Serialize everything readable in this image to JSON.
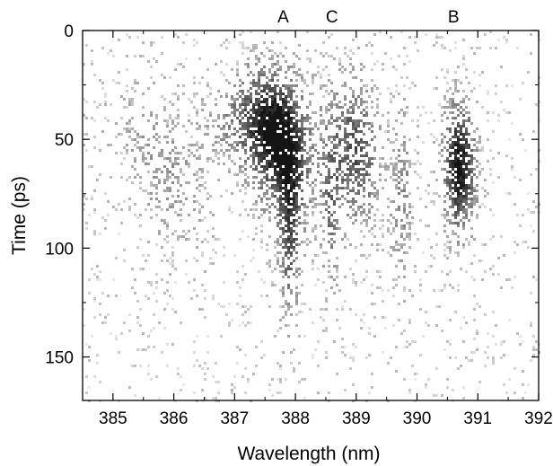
{
  "chart_data": {
    "type": "heatmap",
    "title": "",
    "xlabel": "Wavelength (nm)",
    "ylabel": "Time (ps)",
    "xlim": [
      384.5,
      392
    ],
    "ylim": [
      0,
      170
    ],
    "y_inverted": true,
    "x_ticks": [
      385,
      386,
      387,
      388,
      389,
      390,
      391,
      392
    ],
    "y_ticks": [
      0,
      50,
      100,
      150
    ],
    "x_tick_labels": [
      "385",
      "386",
      "387",
      "388",
      "389",
      "390",
      "391",
      "392"
    ],
    "y_tick_labels": [
      "0",
      "50",
      "100",
      "150"
    ],
    "colormap": "grayscale",
    "background_color": "#ffffff",
    "mark_color": "#000000",
    "annotations": [
      {
        "label": "A",
        "x": 387.8
      },
      {
        "label": "C",
        "x": 388.6
      },
      {
        "label": "B",
        "x": 390.6
      }
    ],
    "streaks": [
      {
        "wavelength": 385.8,
        "time_center": 62,
        "time_spread": 25,
        "width_nm": 0.45,
        "peak_intensity": 0.25,
        "drift_nm": 0.5
      },
      {
        "wavelength": 387.2,
        "time_center": 42,
        "time_spread": 14,
        "width_nm": 0.45,
        "peak_intensity": 0.35,
        "drift_nm": 0
      },
      {
        "wavelength": 387.75,
        "time_center": 52,
        "time_spread": 22,
        "width_nm": 0.35,
        "peak_intensity": 0.85,
        "drift_nm": 0.15
      },
      {
        "wavelength": 387.9,
        "time_center": 95,
        "time_spread": 25,
        "width_nm": 0.12,
        "peak_intensity": 0.5,
        "drift_nm": 0
      },
      {
        "wavelength": 388.6,
        "time_center": 80,
        "time_spread": 25,
        "width_nm": 0.12,
        "peak_intensity": 0.4,
        "drift_nm": 0
      },
      {
        "wavelength": 389.0,
        "time_center": 55,
        "time_spread": 22,
        "width_nm": 0.25,
        "peak_intensity": 0.6,
        "drift_nm": 0.1
      },
      {
        "wavelength": 389.75,
        "time_center": 75,
        "time_spread": 25,
        "width_nm": 0.12,
        "peak_intensity": 0.35,
        "drift_nm": 0
      },
      {
        "wavelength": 390.7,
        "time_center": 62,
        "time_spread": 20,
        "width_nm": 0.18,
        "peak_intensity": 0.9,
        "drift_nm": 0
      }
    ],
    "grid": false,
    "legend": "none"
  }
}
